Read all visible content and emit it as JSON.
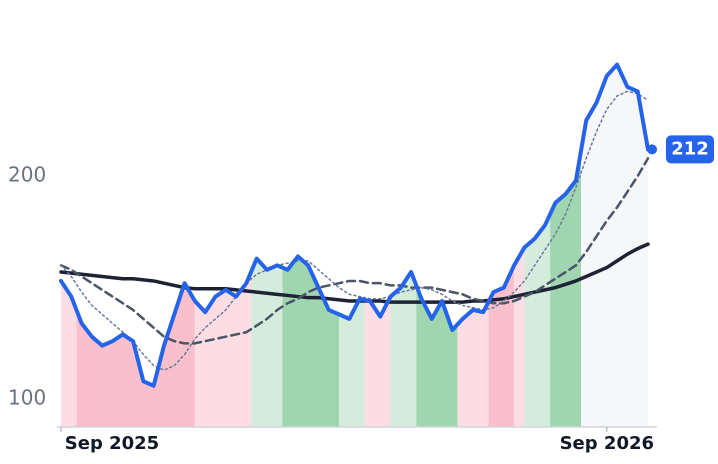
{
  "chart_data": {
    "type": "line",
    "x": [
      0,
      1,
      2,
      3,
      4,
      5,
      6,
      7,
      8,
      9,
      10,
      11,
      12,
      13,
      14,
      15,
      16,
      17,
      18,
      19,
      20,
      21,
      22,
      23,
      24,
      25,
      26,
      27,
      28,
      29,
      30,
      31,
      32,
      33,
      34,
      35,
      36,
      37,
      38,
      39,
      40,
      41,
      42,
      43,
      44,
      45,
      46,
      47,
      48,
      49,
      50,
      51,
      52,
      53,
      54,
      55,
      56,
      57
    ],
    "series": [
      {
        "color": "#f6f7fa",
        "style": "area-bands"
      },
      {
        "color": "#1e2235",
        "width": 3.5,
        "dash": "none",
        "values": [
          157,
          156.5,
          156,
          155.5,
          155,
          154.5,
          154,
          154,
          153.5,
          153,
          152,
          151,
          150,
          149.5,
          149.5,
          149.5,
          149.5,
          149,
          148.5,
          148,
          147.5,
          147,
          146.5,
          146,
          145.5,
          145.5,
          145,
          144.5,
          144,
          144,
          144,
          144,
          143.5,
          143.5,
          143.5,
          143.5,
          143.5,
          143.5,
          143.5,
          143.5,
          144,
          144,
          144.5,
          145,
          146,
          147,
          148,
          149,
          150,
          151.5,
          153,
          155,
          157,
          159,
          162,
          165,
          167.5,
          169.5
        ]
      },
      {
        "color": "#4a5568",
        "width": 2.5,
        "dash": "8 5",
        "values": [
          160,
          158,
          155,
          152,
          149,
          146,
          143,
          140,
          136,
          132,
          128,
          126,
          125,
          125,
          126,
          127,
          128,
          129,
          130,
          133,
          136,
          140,
          143,
          145,
          148,
          150,
          151,
          152,
          153,
          153,
          152,
          152,
          151,
          151,
          150,
          150,
          150,
          149,
          148,
          147,
          145,
          144,
          143,
          143,
          144,
          146,
          148,
          151,
          154,
          157,
          160,
          166,
          173,
          180,
          186,
          193,
          200,
          208
        ]
      },
      {
        "color": "#6b7a99",
        "width": 1.5,
        "dash": "2 3",
        "values": [
          160,
          155,
          148,
          142,
          138,
          134,
          130,
          126,
          120,
          115,
          113,
          115,
          120,
          127,
          132,
          136,
          140,
          146,
          152,
          156,
          158,
          160,
          161,
          162,
          162,
          158,
          154,
          150,
          147,
          146,
          145,
          145,
          146,
          148,
          149,
          150,
          149,
          147,
          144,
          142,
          141,
          140,
          141,
          144,
          148,
          153,
          160,
          167,
          174,
          183,
          195,
          208,
          220,
          230,
          236,
          238,
          237,
          234
        ]
      },
      {
        "color": "#2563eb",
        "width": 4,
        "dash": "none",
        "values": [
          153,
          146,
          134,
          128,
          124,
          126,
          129,
          126,
          108,
          106,
          124,
          138,
          152,
          144,
          139,
          146,
          149,
          146,
          152,
          163,
          158,
          160,
          158,
          164,
          160,
          150,
          140,
          138,
          136,
          145,
          144,
          137,
          146,
          150,
          157,
          145,
          136,
          144,
          131,
          136,
          140,
          139,
          148,
          150,
          160,
          168,
          172,
          178,
          188,
          192,
          198,
          225,
          233,
          245,
          250,
          240,
          238,
          212
        ]
      }
    ],
    "bands": [
      {
        "from": 0,
        "to": 1.5,
        "color": "#fcdde3"
      },
      {
        "from": 1.5,
        "to": 13,
        "color": "#f9c0cb"
      },
      {
        "from": 13,
        "to": 18.5,
        "color": "#fcdde3"
      },
      {
        "from": 18.5,
        "to": 21.5,
        "color": "#d3ecdc"
      },
      {
        "from": 21.5,
        "to": 27,
        "color": "#9fd6b0"
      },
      {
        "from": 27,
        "to": 29.5,
        "color": "#d3ecdc"
      },
      {
        "from": 29.5,
        "to": 32,
        "color": "#fcdde3"
      },
      {
        "from": 32,
        "to": 34.5,
        "color": "#d3ecdc"
      },
      {
        "from": 34.5,
        "to": 38.5,
        "color": "#9fd6b0"
      },
      {
        "from": 38.5,
        "to": 41.5,
        "color": "#fcdde3"
      },
      {
        "from": 41.5,
        "to": 44,
        "color": "#f9c0cb"
      },
      {
        "from": 44,
        "to": 45,
        "color": "#fcdde3"
      },
      {
        "from": 45,
        "to": 47.5,
        "color": "#d3ecdc"
      },
      {
        "from": 47.5,
        "to": 50.5,
        "color": "#9fd6b0"
      },
      {
        "from": 50.5,
        "to": 57,
        "color": "#f6f7fa"
      }
    ],
    "xlim": [
      0,
      57
    ],
    "xticks": [
      {
        "value": 0,
        "label": "Sep 2025"
      },
      {
        "value": 53,
        "label": "Sep 2026"
      }
    ],
    "ylim": [
      87.5,
      279
    ],
    "yticks": [
      100,
      200
    ],
    "badge_color": "#2563eb"
  }
}
